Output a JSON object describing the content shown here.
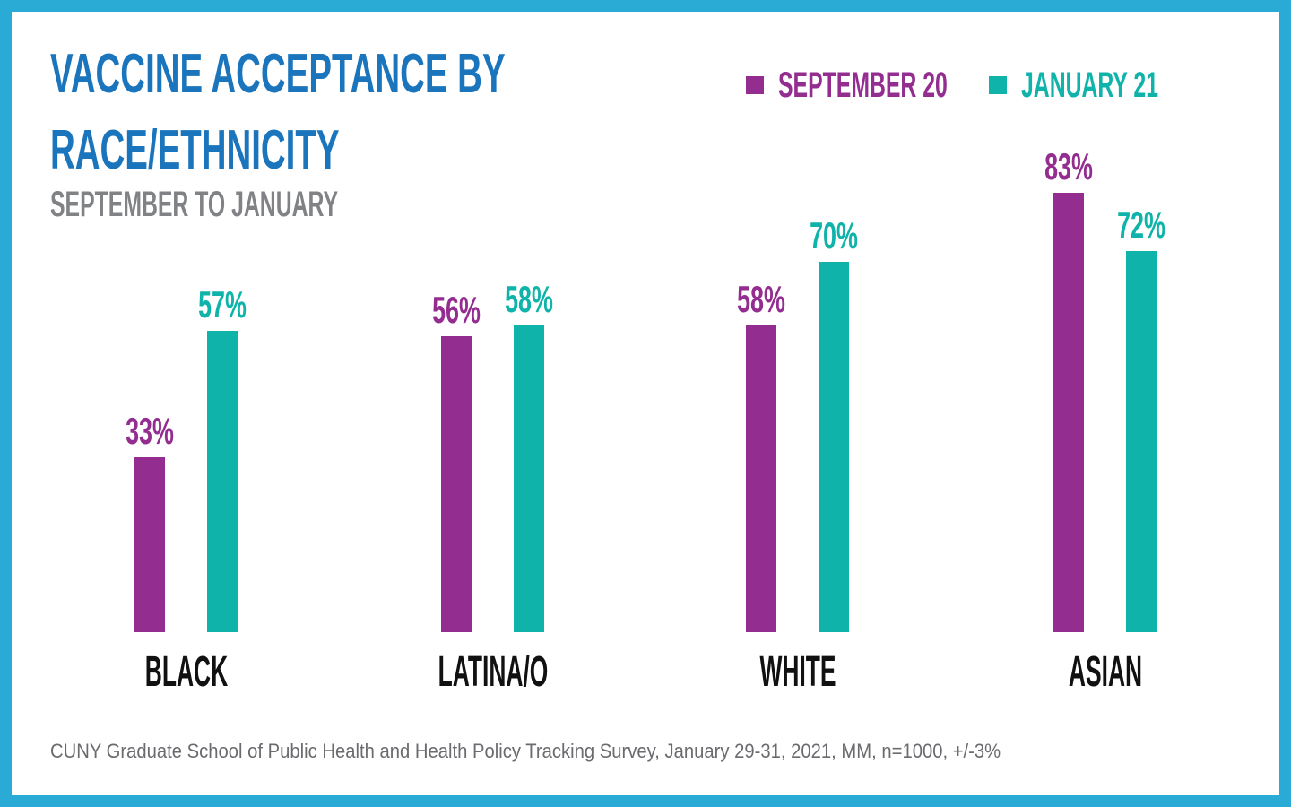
{
  "header": {
    "title_lines": [
      "VACCINE ACCEPTANCE BY",
      "RACE/ETHNICITY"
    ],
    "subtitle": "SEPTEMBER TO JANUARY"
  },
  "chart_data": {
    "type": "bar",
    "title": "VACCINE ACCEPTANCE BY RACE/ETHNICITY",
    "subtitle": "SEPTEMBER TO JANUARY",
    "categories": [
      "BLACK",
      "LATINA/O",
      "WHITE",
      "ASIAN"
    ],
    "series": [
      {
        "name": "SEPTEMBER 20",
        "color": "#932D90",
        "values": [
          33,
          56,
          58,
          83
        ]
      },
      {
        "name": "JANUARY 21",
        "color": "#0FB3A9",
        "values": [
          57,
          58,
          70,
          72
        ]
      }
    ],
    "value_suffix": "%",
    "xlabel": "",
    "ylabel": "",
    "ylim": [
      0,
      100
    ],
    "grid": false,
    "data_labels": true,
    "legend_position": "top-right"
  },
  "footer": {
    "source": "CUNY Graduate School of Public Health and Health Policy Tracking Survey, January 29-31, 2021, MM, n=1000, +/-3%"
  },
  "colors": {
    "title_blue": "#1B75BC",
    "subtitle_gray": "#808285",
    "border_cyan": "#29ABD5",
    "september_purple": "#932D90",
    "january_teal": "#0FB3A9",
    "category_label_black": "#111111",
    "footer_gray": "#6A6B6E"
  }
}
